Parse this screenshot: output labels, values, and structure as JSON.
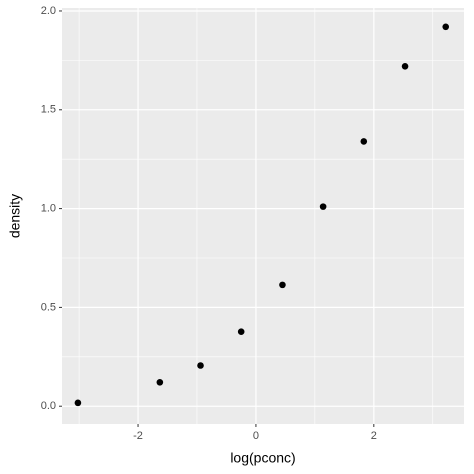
{
  "chart_data": {
    "type": "scatter",
    "x_label": "log(pconc)",
    "y_label": "density",
    "series": [
      {
        "color": "#000000",
        "x": [
          -3.02,
          -1.63,
          -0.94,
          -0.25,
          0.45,
          1.14,
          1.83,
          2.53,
          3.22
        ],
        "values": [
          0.017,
          0.121,
          0.206,
          0.377,
          0.614,
          1.01,
          1.34,
          1.72,
          1.92
        ]
      }
    ],
    "xlim": [
      -3.29,
      3.53
    ],
    "xticks": [
      -2,
      0,
      2
    ],
    "ylim": [
      -0.09,
      2.015
    ],
    "yticks": [
      {
        "value": 0,
        "label": "0.0"
      },
      0.5,
      {
        "value": 1,
        "label": "1.0"
      },
      1.5,
      {
        "value": 2,
        "label": "2.0"
      }
    ],
    "grid": true
  }
}
